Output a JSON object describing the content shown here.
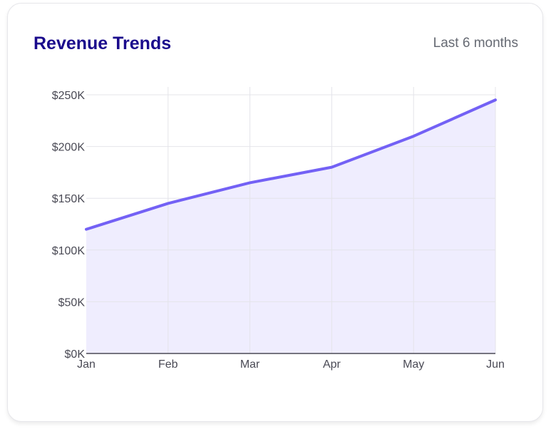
{
  "header": {
    "title": "Revenue Trends",
    "period": "Last 6 months"
  },
  "chart_data": {
    "type": "area",
    "title": "Revenue Trends",
    "categories": [
      "Jan",
      "Feb",
      "Mar",
      "Apr",
      "May",
      "Jun"
    ],
    "values": [
      120000,
      145000,
      165000,
      180000,
      210000,
      245000
    ],
    "ylim": [
      0,
      250000
    ],
    "yticks": [
      0,
      50000,
      100000,
      150000,
      200000,
      250000
    ],
    "ytick_labels": [
      "$0K",
      "$50K",
      "$100K",
      "$150K",
      "$200K",
      "$250K"
    ],
    "xlabel": "",
    "ylabel": "",
    "grid": true,
    "colors": {
      "line": "#7361f5",
      "fill": "#efedfe",
      "grid": "#e4e4ea",
      "axis": "#4a4a55"
    }
  }
}
